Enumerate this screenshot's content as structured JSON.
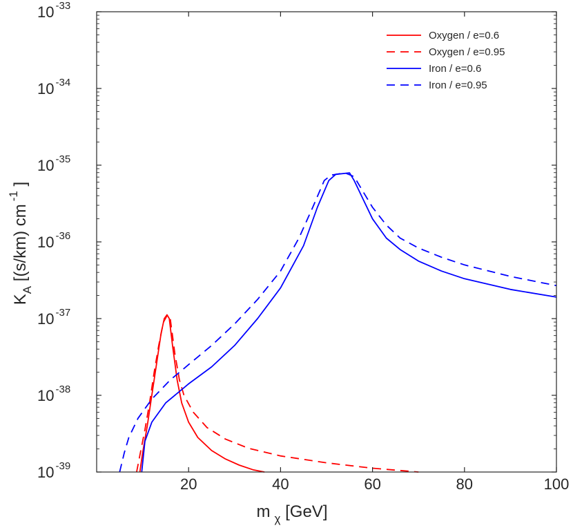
{
  "chart_data": {
    "type": "line",
    "title": "",
    "xlabel": {
      "main": "m",
      "sub": "χ",
      "unit": " [GeV]"
    },
    "ylabel": {
      "main": "K",
      "sub": "A",
      "unit": " [(s/km) cm",
      "exp": "-1",
      "close": " ]"
    },
    "xlim": [
      0,
      100
    ],
    "ylim_exponent": [
      -39,
      -33
    ],
    "y_scale": "log",
    "x_ticks": [
      20,
      40,
      60,
      80,
      100
    ],
    "x_tick_labels": [
      "20",
      "40",
      "60",
      "80",
      "100"
    ],
    "y_tick_exponents": [
      -39,
      -38,
      -37,
      -36,
      -35,
      -34,
      -33
    ],
    "y_tick_base": "10",
    "y_tick_exp_labels": [
      "-39",
      "-38",
      "-37",
      "-36",
      "-35",
      "-34",
      "-33"
    ],
    "legend_position": "top-right",
    "series": [
      {
        "name": "Oxygen / e=0.6",
        "color": "#ff0000",
        "dash": "solid",
        "points": [
          [
            9.4,
            -39.0
          ],
          [
            10,
            -38.75
          ],
          [
            11,
            -38.4
          ],
          [
            12,
            -38.0
          ],
          [
            13,
            -37.6
          ],
          [
            14,
            -37.2
          ],
          [
            14.7,
            -37.0
          ],
          [
            15.3,
            -36.95
          ],
          [
            15.8,
            -37.0
          ],
          [
            16.5,
            -37.35
          ],
          [
            17.5,
            -37.8
          ],
          [
            18.5,
            -38.1
          ],
          [
            20,
            -38.35
          ],
          [
            22,
            -38.55
          ],
          [
            25,
            -38.72
          ],
          [
            28,
            -38.83
          ],
          [
            31,
            -38.91
          ],
          [
            34,
            -38.97
          ],
          [
            36.5,
            -39.0
          ]
        ]
      },
      {
        "name": "Oxygen / e=0.95",
        "color": "#ff0000",
        "dash": "dashed",
        "points": [
          [
            8.7,
            -39.0
          ],
          [
            9.5,
            -38.75
          ],
          [
            10.5,
            -38.45
          ],
          [
            11.5,
            -38.1
          ],
          [
            12.5,
            -37.7
          ],
          [
            13.5,
            -37.35
          ],
          [
            14.5,
            -37.05
          ],
          [
            15.4,
            -36.95
          ],
          [
            16,
            -37.0
          ],
          [
            17,
            -37.45
          ],
          [
            18,
            -37.8
          ],
          [
            19,
            -38.0
          ],
          [
            21,
            -38.22
          ],
          [
            24,
            -38.42
          ],
          [
            28,
            -38.57
          ],
          [
            33,
            -38.69
          ],
          [
            40,
            -38.79
          ],
          [
            50,
            -38.88
          ],
          [
            60,
            -38.95
          ],
          [
            70,
            -39.0
          ]
        ]
      },
      {
        "name": "Iron / e=0.6",
        "color": "#0000ff",
        "dash": "solid",
        "points": [
          [
            9.8,
            -39.0
          ],
          [
            10.5,
            -38.6
          ],
          [
            12,
            -38.35
          ],
          [
            15,
            -38.1
          ],
          [
            20,
            -37.85
          ],
          [
            25,
            -37.63
          ],
          [
            30,
            -37.35
          ],
          [
            35,
            -37.0
          ],
          [
            40,
            -36.6
          ],
          [
            45,
            -36.05
          ],
          [
            48,
            -35.55
          ],
          [
            50.5,
            -35.2
          ],
          [
            52,
            -35.12
          ],
          [
            55,
            -35.1
          ],
          [
            56,
            -35.2
          ],
          [
            58,
            -35.45
          ],
          [
            60,
            -35.7
          ],
          [
            63,
            -35.95
          ],
          [
            66,
            -36.1
          ],
          [
            70,
            -36.25
          ],
          [
            75,
            -36.38
          ],
          [
            80,
            -36.48
          ],
          [
            90,
            -36.62
          ],
          [
            100,
            -36.72
          ]
        ]
      },
      {
        "name": "Iron / e=0.95",
        "color": "#0000ff",
        "dash": "dashed",
        "points": [
          [
            5.0,
            -39.0
          ],
          [
            6,
            -38.75
          ],
          [
            7,
            -38.55
          ],
          [
            9,
            -38.3
          ],
          [
            12,
            -38.05
          ],
          [
            16,
            -37.8
          ],
          [
            20,
            -37.6
          ],
          [
            25,
            -37.35
          ],
          [
            30,
            -37.07
          ],
          [
            35,
            -36.75
          ],
          [
            40,
            -36.38
          ],
          [
            44,
            -35.95
          ],
          [
            47,
            -35.55
          ],
          [
            49.5,
            -35.2
          ],
          [
            51,
            -35.13
          ],
          [
            54,
            -35.1
          ],
          [
            56,
            -35.15
          ],
          [
            58,
            -35.35
          ],
          [
            60,
            -35.55
          ],
          [
            63,
            -35.78
          ],
          [
            66,
            -35.95
          ],
          [
            70,
            -36.08
          ],
          [
            75,
            -36.2
          ],
          [
            80,
            -36.3
          ],
          [
            90,
            -36.45
          ],
          [
            100,
            -36.57
          ]
        ]
      }
    ]
  }
}
